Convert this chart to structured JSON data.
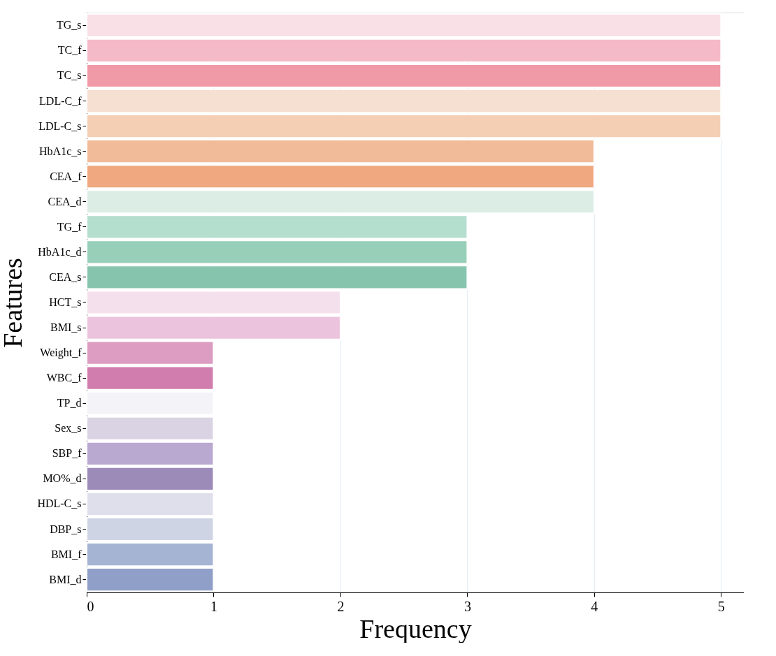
{
  "chart_data": {
    "type": "bar",
    "orientation": "horizontal",
    "xlabel": "Frequency",
    "ylabel": "Features",
    "categories": [
      "TG_s",
      "TC_f",
      "TC_s",
      "LDL-C_f",
      "LDL-C_s",
      "HbA1c_s",
      "CEA_f",
      "CEA_d",
      "TG_f",
      "HbA1c_d",
      "CEA_s",
      "HCT_s",
      "BMI_s",
      "Weight_f",
      "WBC_f",
      "TP_d",
      "Sex_s",
      "SBP_f",
      "MO%_d",
      "HDL-C_s",
      "DBP_s",
      "BMI_f",
      "BMI_d"
    ],
    "values": [
      5,
      5,
      5,
      5,
      5,
      4,
      4,
      4,
      3,
      3,
      3,
      2,
      2,
      1,
      1,
      1,
      1,
      1,
      1,
      1,
      1,
      1,
      1
    ],
    "colors": [
      "#f8e0e6",
      "#f4bac8",
      "#f09aa8",
      "#f6e0d2",
      "#f4cfb4",
      "#f1bb99",
      "#efa880",
      "#dcede6",
      "#b4dece",
      "#98cfb8",
      "#87c4ae",
      "#f4e0ec",
      "#ecc3dc",
      "#dd9cc1",
      "#d17dad",
      "#f4f3f8",
      "#dad3e3",
      "#b9a8cf",
      "#9c8ab9",
      "#dfdfeb",
      "#ced4e4",
      "#a5b4d3",
      "#8f9fc8"
    ],
    "xlim": [
      0,
      5.18
    ],
    "xticks": [
      0,
      1,
      2,
      3,
      4,
      5
    ],
    "grid": "x"
  }
}
